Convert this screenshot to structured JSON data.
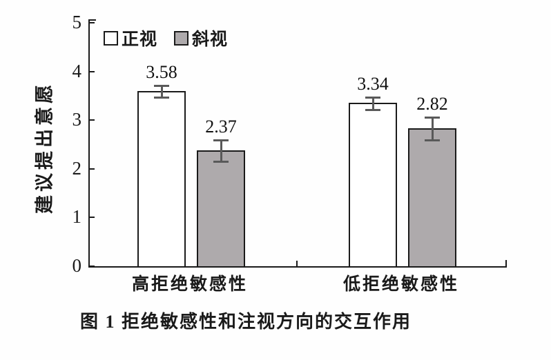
{
  "figure": {
    "caption": "图 1  拒绝敏感性和注视方向的交互作用"
  },
  "chart_data": {
    "type": "bar",
    "title": "",
    "xlabel": "",
    "ylabel": "建议提出意愿",
    "categories": [
      "高拒绝敏感性",
      "低拒绝敏感性"
    ],
    "series": [
      {
        "name": "正视",
        "values": [
          3.58,
          3.34
        ],
        "errors": [
          0.14,
          0.15
        ],
        "fill": "#ffffff"
      },
      {
        "name": "斜视",
        "values": [
          2.37,
          2.82
        ],
        "errors": [
          0.24,
          0.25
        ],
        "fill": "#aeaaac"
      }
    ],
    "data_labels": {
      "series_0": [
        "3.58",
        "3.34"
      ],
      "series_1": [
        "2.37",
        "2.82"
      ]
    },
    "ylim": [
      0,
      5
    ],
    "yticks": [
      0,
      1,
      2,
      3,
      4,
      5
    ],
    "grid": false,
    "legend_position": "top-left-inside",
    "colors": {
      "axis": "#1a1a1a",
      "bar_border": "#1a1a1a",
      "error_bar": "#595959",
      "text": "#1a1a1a",
      "background": "#ffffff"
    }
  }
}
